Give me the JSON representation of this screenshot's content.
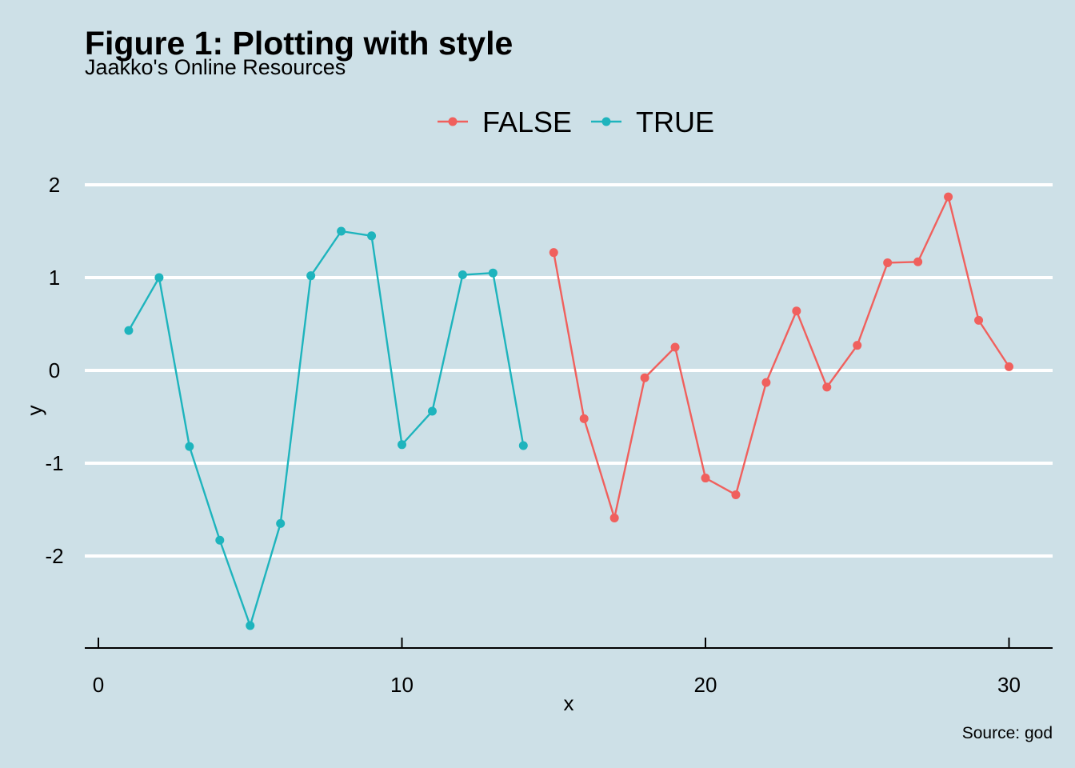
{
  "chart_data": {
    "type": "line",
    "title": "Figure 1: Plotting with style",
    "subtitle": "Jaakko's Online Resources",
    "caption": "Source: god",
    "xlabel": "x",
    "ylabel": "y",
    "xlim": [
      0,
      30
    ],
    "ylim": [
      -2.75,
      1.88
    ],
    "x_ticks": [
      0,
      10,
      20,
      30
    ],
    "x_tick_labels": [
      "0",
      "10",
      "20",
      "30"
    ],
    "y_ticks": [
      -2,
      -1,
      0,
      1,
      2
    ],
    "y_tick_labels": [
      "-2",
      "-1",
      "0",
      "1",
      "2"
    ],
    "grid": "horizontal major, white",
    "legend_position": "top",
    "series": [
      {
        "name": "FALSE",
        "color": "#f0605d",
        "x": [
          15,
          16,
          17,
          18,
          19,
          20,
          21,
          22,
          23,
          24,
          25,
          26,
          27,
          28,
          29,
          30
        ],
        "y": [
          1.27,
          -0.52,
          -1.59,
          -0.08,
          0.25,
          -1.16,
          -1.34,
          -0.13,
          0.64,
          -0.18,
          0.27,
          1.16,
          1.17,
          1.87,
          0.54,
          0.04
        ]
      },
      {
        "name": "TRUE",
        "color": "#1eb4bd",
        "x": [
          1,
          2,
          3,
          4,
          5,
          6,
          7,
          8,
          9,
          10,
          11,
          12,
          13,
          14
        ],
        "y": [
          0.43,
          1.0,
          -0.82,
          -1.83,
          -2.75,
          -1.65,
          1.02,
          1.5,
          1.45,
          -0.8,
          -0.44,
          1.03,
          1.05,
          -0.81
        ]
      }
    ]
  }
}
